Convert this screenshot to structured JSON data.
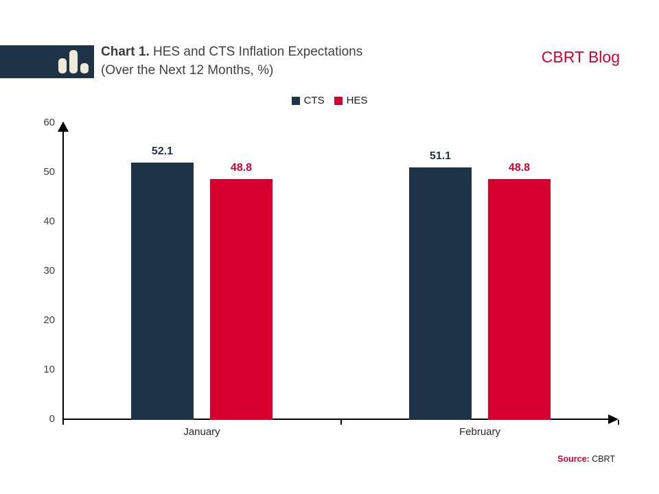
{
  "header": {
    "title_prefix": "Chart 1.",
    "title_rest": " HES and CTS Inflation Expectations",
    "title_line2": "(Over the Next 12 Months, %)",
    "brand": "CBRT Blog"
  },
  "footer": {
    "source_label": "Source:",
    "source_value": "CBRT"
  },
  "colors": {
    "navy": "#1e3346",
    "red": "#d6002f",
    "cream": "#efe9d8",
    "axis": "#000000",
    "title_gray": "#404040"
  },
  "icons": {
    "logo": "bar-chart-icon"
  },
  "chart_data": {
    "type": "bar",
    "title": "Chart 1. HES and CTS Inflation Expectations (Over the Next 12 Months, %)",
    "categories": [
      "January",
      "February"
    ],
    "series": [
      {
        "name": "CTS",
        "color": "#1e3346",
        "values": [
          52.1,
          51.1
        ]
      },
      {
        "name": "HES",
        "color": "#d6002f",
        "values": [
          48.8,
          48.8
        ]
      }
    ],
    "xlabel": "",
    "ylabel": "",
    "ylim": [
      0,
      60
    ],
    "yticks": [
      0,
      10,
      20,
      30,
      40,
      50,
      60
    ],
    "grid": false,
    "legend_position": "top",
    "value_labels": true
  }
}
